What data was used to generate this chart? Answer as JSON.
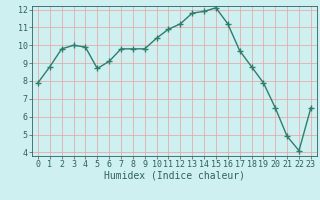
{
  "x": [
    0,
    1,
    2,
    3,
    4,
    5,
    6,
    7,
    8,
    9,
    10,
    11,
    12,
    13,
    14,
    15,
    16,
    17,
    18,
    19,
    20,
    21,
    22,
    23
  ],
  "y": [
    7.9,
    8.8,
    9.8,
    10.0,
    9.9,
    8.7,
    9.1,
    9.8,
    9.8,
    9.8,
    10.4,
    10.9,
    11.2,
    11.8,
    11.9,
    12.1,
    11.2,
    9.7,
    8.8,
    7.9,
    6.5,
    4.9,
    4.1,
    6.5
  ],
  "xlabel": "Humidex (Indice chaleur)",
  "ylim": [
    4,
    12
  ],
  "xlim": [
    -0.5,
    23.5
  ],
  "yticks": [
    4,
    5,
    6,
    7,
    8,
    9,
    10,
    11,
    12
  ],
  "xticks": [
    0,
    1,
    2,
    3,
    4,
    5,
    6,
    7,
    8,
    9,
    10,
    11,
    12,
    13,
    14,
    15,
    16,
    17,
    18,
    19,
    20,
    21,
    22,
    23
  ],
  "line_color": "#2e7d6e",
  "marker": "+",
  "bg_color": "#cff0f0",
  "grid_color": "#e8a0a0",
  "tick_color": "#2e6060",
  "label_color": "#2e6060",
  "font_size": 6.0,
  "xlabel_fontsize": 7.0,
  "linewidth": 1.0,
  "marker_size": 4,
  "marker_linewidth": 1.0
}
